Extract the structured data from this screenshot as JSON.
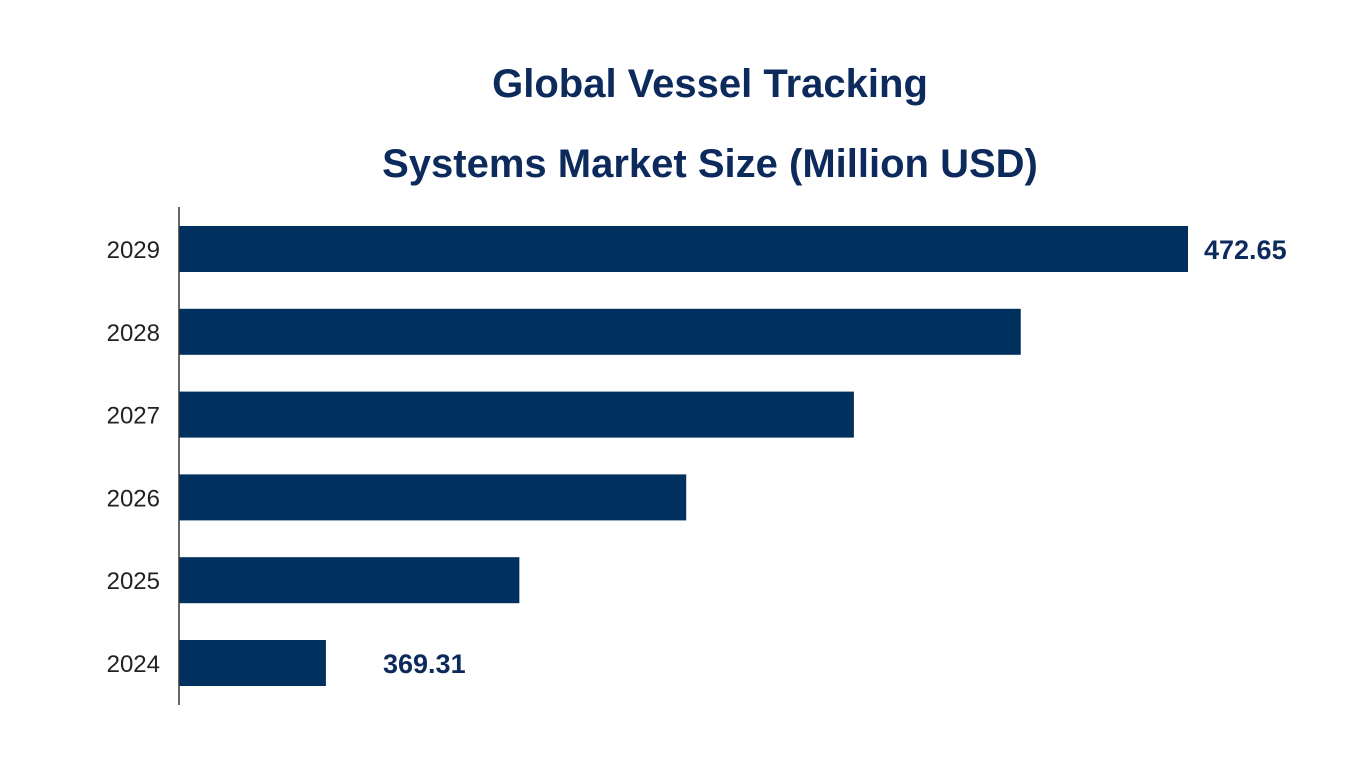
{
  "chart_data": {
    "type": "bar",
    "orientation": "horizontal",
    "title_lines": [
      "Global Vessel Tracking",
      "Systems Market Size (Million USD)"
    ],
    "categories": [
      "2029",
      "2028",
      "2027",
      "2026",
      "2025",
      "2024"
    ],
    "values": [
      472.65,
      452.6,
      432.6,
      412.5,
      392.5,
      369.31
    ],
    "data_labels": [
      {
        "category": "2029",
        "text": "472.65"
      },
      {
        "category": "2024",
        "text": "369.31"
      }
    ],
    "xlim": [
      351.7,
      472.65
    ],
    "xlabel": "",
    "ylabel": "",
    "grid": false,
    "legend": "none",
    "colors": {
      "bar": "#00305e",
      "title": "#0d2a5c",
      "data_label": "#0d2a5c",
      "tick_label": "#222222",
      "axis": "#333333"
    }
  }
}
